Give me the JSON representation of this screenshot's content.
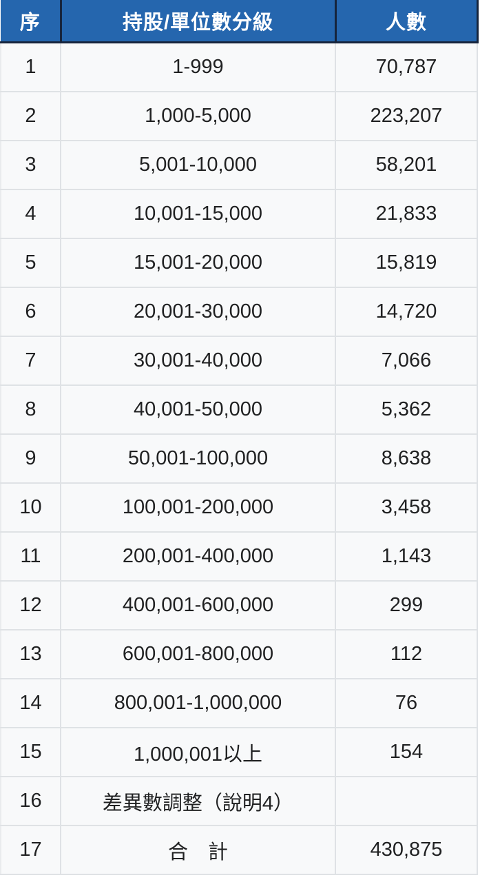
{
  "table": {
    "columns": [
      {
        "label": "序"
      },
      {
        "label": "持股/單位數分級"
      },
      {
        "label": "人數"
      }
    ],
    "rows": [
      {
        "seq": "1",
        "range": "1-999",
        "count": "70,787"
      },
      {
        "seq": "2",
        "range": "1,000-5,000",
        "count": "223,207"
      },
      {
        "seq": "3",
        "range": "5,001-10,000",
        "count": "58,201"
      },
      {
        "seq": "4",
        "range": "10,001-15,000",
        "count": "21,833"
      },
      {
        "seq": "5",
        "range": "15,001-20,000",
        "count": "15,819"
      },
      {
        "seq": "6",
        "range": "20,001-30,000",
        "count": "14,720"
      },
      {
        "seq": "7",
        "range": "30,001-40,000",
        "count": "7,066"
      },
      {
        "seq": "8",
        "range": "40,001-50,000",
        "count": "5,362"
      },
      {
        "seq": "9",
        "range": "50,001-100,000",
        "count": "8,638"
      },
      {
        "seq": "10",
        "range": "100,001-200,000",
        "count": "3,458"
      },
      {
        "seq": "11",
        "range": "200,001-400,000",
        "count": "1,143"
      },
      {
        "seq": "12",
        "range": "400,001-600,000",
        "count": "299"
      },
      {
        "seq": "13",
        "range": "600,001-800,000",
        "count": "112"
      },
      {
        "seq": "14",
        "range": "800,001-1,000,000",
        "count": "76"
      },
      {
        "seq": "15",
        "range": "1,000,001以上",
        "count": "154"
      },
      {
        "seq": "16",
        "range": "差異數調整（說明4）",
        "count": ""
      },
      {
        "seq": "17",
        "range": "合　計",
        "count": "430,875"
      }
    ]
  },
  "colors": {
    "header_bg": "#2566ae",
    "header_text": "#ffffff",
    "header_border": "#16243c",
    "row_bg": "#f8f9fa",
    "row_border": "#dfe2e5",
    "body_text": "#202122"
  },
  "chart_data": {
    "type": "table",
    "title": "持股/單位數分級人數統計表",
    "columns": [
      "序",
      "持股/單位數分級",
      "人數"
    ],
    "categories": [
      "1-999",
      "1,000-5,000",
      "5,001-10,000",
      "10,001-15,000",
      "15,001-20,000",
      "20,001-30,000",
      "30,001-40,000",
      "40,001-50,000",
      "50,001-100,000",
      "100,001-200,000",
      "200,001-400,000",
      "400,001-600,000",
      "600,001-800,000",
      "800,001-1,000,000",
      "1,000,001以上",
      "差異數調整（說明4）",
      "合　計"
    ],
    "values": [
      70787,
      223207,
      58201,
      21833,
      15819,
      14720,
      7066,
      5362,
      8638,
      3458,
      1143,
      299,
      112,
      76,
      154,
      null,
      430875
    ],
    "ylabel": "人數",
    "total": 430875
  }
}
